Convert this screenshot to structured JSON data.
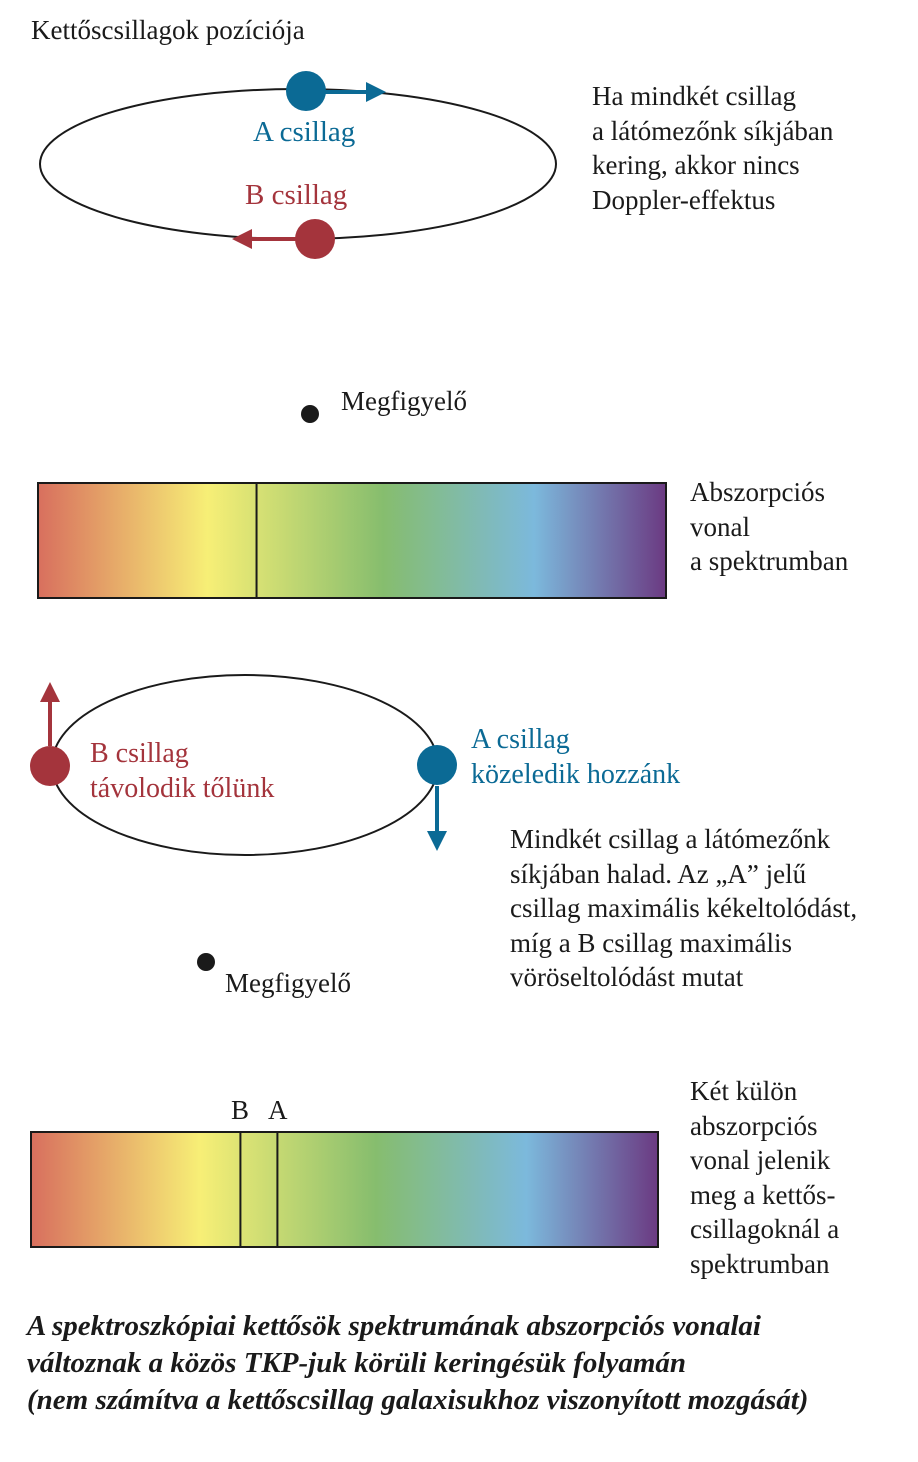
{
  "colors": {
    "star_a": "#0b6a95",
    "star_b": "#a4343c",
    "text": "#1a1a1a",
    "spectrum": [
      "#d86f5e",
      "#f7ef76",
      "#86bd6e",
      "#7cb9dc",
      "#6b3a82"
    ]
  },
  "top": {
    "title": "Kettőscsillagok pozíciója",
    "star_a_label": "A csillag",
    "star_b_label": "B csillag",
    "note_lines": [
      "Ha mindkét csillag",
      "a látómezőnk síkjában",
      "kering, akkor nincs",
      "Doppler-effektus"
    ],
    "observer_label": "Megfigyelő"
  },
  "spectrum1": {
    "label_lines": [
      "Abszorpciós",
      "vonal",
      "a spektrumban"
    ],
    "line_position": 0.348
  },
  "middle": {
    "star_b_lines": [
      "B csillag",
      "távolodik tőlünk"
    ],
    "star_a_lines": [
      "A csillag",
      "közeledik hozzánk"
    ],
    "note_lines": [
      "Mindkét csillag a látómezőnk",
      "síkjában halad. Az „A” jelű",
      "csillag maximális kékeltolódást,",
      "míg a B csillag maximális",
      "vöröseltolódást mutat"
    ],
    "observer_label": "Megfigyelő"
  },
  "spectrum2": {
    "marker_b": "B",
    "marker_a": "A",
    "line_b_position": 0.334,
    "line_a_position": 0.393,
    "label_lines": [
      "Két külön",
      "abszorpciós",
      "vonal jelenik",
      "meg a kettős-",
      "csillagoknál a",
      "spektrumban"
    ]
  },
  "caption_lines": [
    "A spektroszkópiai kettősök spektrumának abszorpciós vonalai",
    "változnak a közös TKP-juk körüli keringésük folyamán",
    "(nem számítva a kettőscsillag galaxisukhoz viszonyított mozgását)"
  ]
}
